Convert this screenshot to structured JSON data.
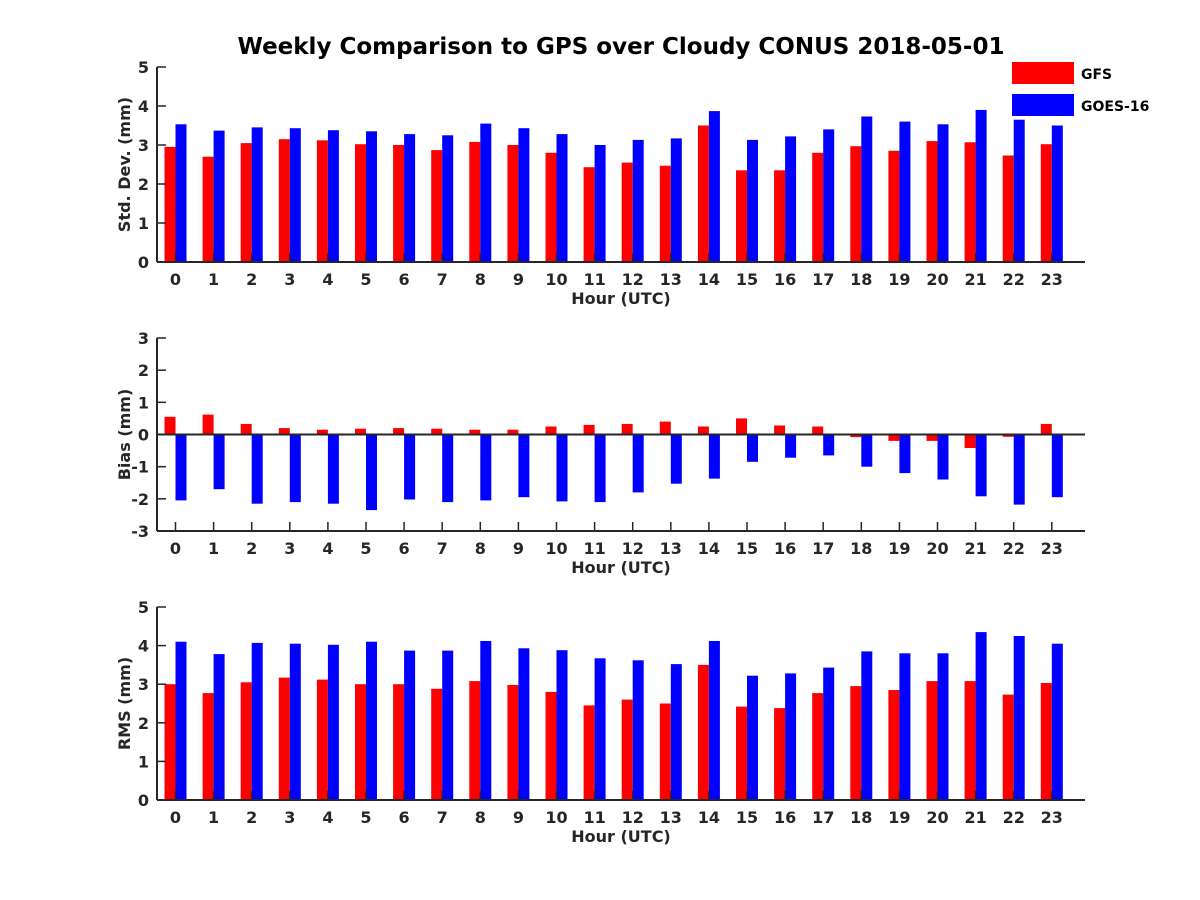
{
  "title": "Weekly Comparison to GPS over Cloudy CONUS 2018-05-01",
  "legend": {
    "placement": "top-right",
    "entries": [
      {
        "name": "GFS",
        "color": "#ff0000"
      },
      {
        "name": "GOES-16",
        "color": "#0000ff"
      }
    ]
  },
  "chart_data": [
    {
      "type": "bar",
      "ylabel": "Std. Dev. (mm)",
      "xlabel": "Hour (UTC)",
      "ylim": [
        0,
        5
      ],
      "yticks": [
        0,
        1,
        2,
        3,
        4,
        5
      ],
      "categories": [
        "0",
        "1",
        "2",
        "3",
        "4",
        "5",
        "6",
        "7",
        "8",
        "9",
        "10",
        "11",
        "12",
        "13",
        "14",
        "15",
        "16",
        "17",
        "18",
        "19",
        "20",
        "21",
        "22",
        "23"
      ],
      "series": [
        {
          "name": "GFS",
          "color": "#ff0000",
          "values": [
            2.95,
            2.7,
            3.05,
            3.15,
            3.12,
            3.02,
            3.0,
            2.87,
            3.08,
            3.0,
            2.8,
            2.43,
            2.55,
            2.47,
            3.5,
            2.35,
            2.35,
            2.8,
            2.97,
            2.85,
            3.1,
            3.07,
            2.73,
            3.02
          ]
        },
        {
          "name": "GOES-16",
          "color": "#0000ff",
          "values": [
            3.53,
            3.37,
            3.45,
            3.43,
            3.38,
            3.35,
            3.28,
            3.25,
            3.55,
            3.43,
            3.28,
            3.0,
            3.13,
            3.17,
            3.87,
            3.13,
            3.22,
            3.4,
            3.73,
            3.6,
            3.53,
            3.9,
            3.65,
            3.5
          ]
        }
      ]
    },
    {
      "type": "bar",
      "ylabel": "Bias (mm)",
      "xlabel": "Hour (UTC)",
      "ylim": [
        -3,
        3
      ],
      "yticks": [
        -3,
        -2,
        -1,
        0,
        1,
        2,
        3
      ],
      "categories": [
        "0",
        "1",
        "2",
        "3",
        "4",
        "5",
        "6",
        "7",
        "8",
        "9",
        "10",
        "11",
        "12",
        "13",
        "14",
        "15",
        "16",
        "17",
        "18",
        "19",
        "20",
        "21",
        "22",
        "23"
      ],
      "series": [
        {
          "name": "GFS",
          "color": "#ff0000",
          "values": [
            0.55,
            0.62,
            0.33,
            0.2,
            0.15,
            0.18,
            0.2,
            0.18,
            0.15,
            0.15,
            0.25,
            0.3,
            0.33,
            0.4,
            0.25,
            0.5,
            0.28,
            0.25,
            -0.08,
            -0.2,
            -0.2,
            -0.42,
            -0.07,
            0.33
          ]
        },
        {
          "name": "GOES-16",
          "color": "#0000ff",
          "values": [
            -2.05,
            -1.7,
            -2.15,
            -2.1,
            -2.15,
            -2.35,
            -2.02,
            -2.1,
            -2.05,
            -1.95,
            -2.08,
            -2.1,
            -1.8,
            -1.53,
            -1.37,
            -0.85,
            -0.72,
            -0.65,
            -1.0,
            -1.2,
            -1.4,
            -1.92,
            -2.18,
            -1.95
          ]
        }
      ]
    },
    {
      "type": "bar",
      "ylabel": "RMS (mm)",
      "xlabel": "Hour (UTC)",
      "ylim": [
        0,
        5
      ],
      "yticks": [
        0,
        1,
        2,
        3,
        4,
        5
      ],
      "categories": [
        "0",
        "1",
        "2",
        "3",
        "4",
        "5",
        "6",
        "7",
        "8",
        "9",
        "10",
        "11",
        "12",
        "13",
        "14",
        "15",
        "16",
        "17",
        "18",
        "19",
        "20",
        "21",
        "22",
        "23"
      ],
      "series": [
        {
          "name": "GFS",
          "color": "#ff0000",
          "values": [
            3.0,
            2.77,
            3.05,
            3.17,
            3.12,
            3.0,
            3.0,
            2.88,
            3.08,
            2.98,
            2.8,
            2.45,
            2.6,
            2.5,
            3.5,
            2.42,
            2.38,
            2.77,
            2.95,
            2.85,
            3.08,
            3.08,
            2.73,
            3.03
          ]
        },
        {
          "name": "GOES-16",
          "color": "#0000ff",
          "values": [
            4.1,
            3.78,
            4.07,
            4.05,
            4.02,
            4.1,
            3.87,
            3.87,
            4.12,
            3.93,
            3.88,
            3.67,
            3.62,
            3.52,
            4.12,
            3.22,
            3.28,
            3.43,
            3.85,
            3.8,
            3.8,
            4.35,
            4.25,
            4.05
          ]
        }
      ]
    }
  ]
}
